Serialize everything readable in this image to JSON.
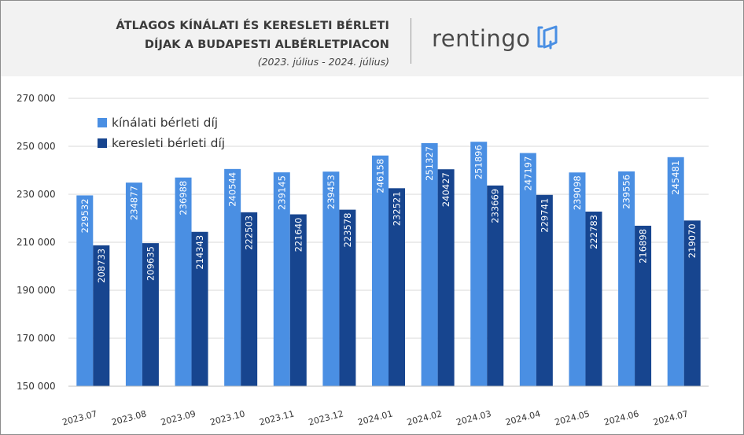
{
  "header": {
    "title_line1": "ÁTLAGOS KÍNÁLATI ÉS KERESLETI BÉRLETI",
    "title_line2": "DÍJAK A BUDAPESTI ALBÉRLETPIACON",
    "subtitle": "(2023. július - 2024. július)",
    "logo_text": "rentingo",
    "logo_icon": "open-door-icon"
  },
  "colors": {
    "offer": "#4a8fe3",
    "demand": "#17458f",
    "header_bg": "#f2f2f2",
    "grid": "#d9d9d9"
  },
  "chart_data": {
    "type": "bar",
    "categories": [
      "2023.07",
      "2023.08",
      "2023.09",
      "2023.10",
      "2023.11",
      "2023.12",
      "2024.01",
      "2024.02",
      "2024.03",
      "2024.04",
      "2024.05",
      "2024.06",
      "2024.07"
    ],
    "series": [
      {
        "name": "kínálati bérleti díj",
        "values": [
          229532,
          234877,
          236988,
          240544,
          239145,
          239453,
          246158,
          251327,
          251896,
          247197,
          239098,
          239556,
          245481
        ]
      },
      {
        "name": "keresleti bérleti díj",
        "values": [
          208733,
          209635,
          214343,
          222503,
          221640,
          223578,
          232521,
          240427,
          233669,
          229741,
          222783,
          216898,
          219070
        ]
      }
    ],
    "ylim": [
      150000,
      270000
    ],
    "yticks": [
      150000,
      170000,
      190000,
      210000,
      230000,
      250000,
      270000
    ],
    "ytick_labels": [
      "150 000",
      "170 000",
      "190 000",
      "210 000",
      "230 000",
      "250 000",
      "270 000"
    ],
    "grid": true,
    "legend_position": "top-left",
    "data_labels": "inside-vertical"
  }
}
